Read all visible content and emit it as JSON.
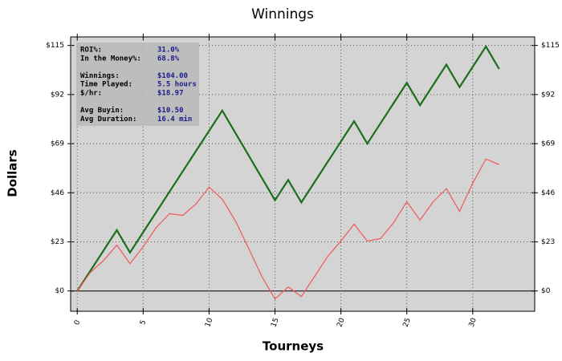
{
  "chart_data": {
    "type": "line",
    "title": "Winnings",
    "xlabel": "Tourneys",
    "ylabel": "Dollars",
    "x": [
      0,
      1,
      2,
      3,
      4,
      5,
      6,
      7,
      8,
      9,
      10,
      11,
      12,
      13,
      14,
      15,
      16,
      17,
      18,
      19,
      20,
      21,
      22,
      23,
      24,
      25,
      26,
      27,
      28,
      29,
      30,
      31,
      32
    ],
    "series": [
      {
        "color": "#1b6e1b",
        "values": [
          0,
          9.5,
          19,
          28.5,
          18,
          27.5,
          37,
          46.5,
          56,
          65.5,
          75,
          84.5,
          74,
          63.5,
          53,
          42.5,
          52,
          41.5,
          51,
          60.5,
          70,
          79.5,
          69,
          78.5,
          88,
          97.5,
          87,
          96.5,
          106,
          95.5,
          105,
          114.5,
          104
        ]
      },
      {
        "color": "#f05858",
        "values": [
          0,
          8.7,
          14.3,
          21.5,
          12.8,
          20.7,
          29.8,
          36.2,
          35.4,
          40.7,
          48.6,
          43,
          32.8,
          20,
          6.8,
          -3.8,
          1.9,
          -2.6,
          6.8,
          16.2,
          23.4,
          31.3,
          23.4,
          24.5,
          32,
          41.8,
          33.2,
          41.8,
          47.9,
          37.3,
          50.5,
          61.8,
          59.2
        ]
      }
    ],
    "xlim": [
      -0.5,
      34.7
    ],
    "ylim": [
      -9.5,
      119
    ],
    "xticks": [
      0,
      5,
      10,
      15,
      20,
      25,
      30
    ],
    "yticks": [
      {
        "value": 0,
        "label": "$0"
      },
      {
        "value": 23,
        "label": "$23"
      },
      {
        "value": 46,
        "label": "$46"
      },
      {
        "value": 69,
        "label": "$69"
      },
      {
        "value": 92,
        "label": "$92"
      },
      {
        "value": 115,
        "label": "$115"
      }
    ],
    "grid": true,
    "stats": [
      [
        {
          "label": "ROI%:",
          "value": "31.0%"
        },
        {
          "label": "In the Money%:",
          "value": "68.8%"
        }
      ],
      [
        {
          "label": "Winnings:",
          "value": "$104.00"
        },
        {
          "label": "Time Played:",
          "value": "5.5 hours"
        },
        {
          "label": "$/hr:",
          "value": "$18.97"
        }
      ],
      [
        {
          "label": "Avg Buyin:",
          "value": "$10.50"
        },
        {
          "label": "Avg Duration:",
          "value": "16.4 min"
        }
      ]
    ]
  }
}
